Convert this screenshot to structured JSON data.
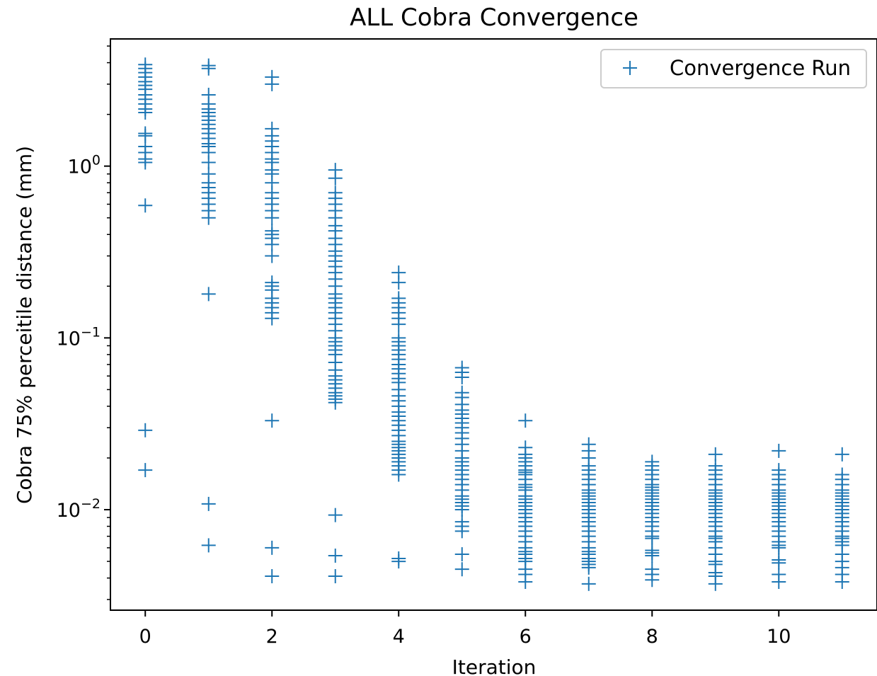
{
  "chart_data": {
    "type": "scatter",
    "title": "ALL Cobra Convergence",
    "xlabel": "Iteration",
    "ylabel": "Cobra 75% perceitile distance (mm)",
    "yscale": "log",
    "xlim": [
      -0.55,
      11.55
    ],
    "ylim": [
      0.0026,
      5.5
    ],
    "xticks": [
      0,
      2,
      4,
      6,
      8,
      10
    ],
    "yticks": [
      {
        "value": 1.0,
        "base": "10",
        "exp": "0"
      },
      {
        "value": 0.1,
        "base": "10",
        "exp": "−1"
      },
      {
        "value": 0.01,
        "base": "10",
        "exp": "−2"
      }
    ],
    "marker": "+",
    "color": "#1f77b4",
    "legend": {
      "position": "upper right",
      "entries": [
        "Convergence Run"
      ]
    },
    "series": [
      {
        "name": "Convergence Run",
        "points_by_iteration": [
          {
            "x": 0,
            "y": [
              3.9,
              3.7,
              3.5,
              3.3,
              3.1,
              2.95,
              2.8,
              2.6,
              2.45,
              2.3,
              2.15,
              2.05,
              1.55,
              1.5,
              1.3,
              1.2,
              1.1,
              1.05,
              0.59,
              0.029,
              0.017
            ]
          },
          {
            "x": 1,
            "y": [
              3.85,
              3.7,
              2.6,
              2.3,
              2.15,
              2.05,
              1.95,
              1.85,
              1.75,
              1.65,
              1.55,
              1.45,
              1.35,
              1.3,
              1.2,
              1.05,
              0.9,
              0.8,
              0.75,
              0.7,
              0.65,
              0.6,
              0.55,
              0.5,
              0.18,
              0.0108,
              0.0062
            ]
          },
          {
            "x": 2,
            "y": [
              3.3,
              3.0,
              1.65,
              1.5,
              1.4,
              1.3,
              1.2,
              1.1,
              1.05,
              0.95,
              0.9,
              0.8,
              0.7,
              0.65,
              0.6,
              0.55,
              0.5,
              0.42,
              0.4,
              0.38,
              0.35,
              0.3,
              0.21,
              0.2,
              0.19,
              0.17,
              0.16,
              0.15,
              0.14,
              0.13,
              0.033,
              0.006,
              0.0041
            ]
          },
          {
            "x": 3,
            "y": [
              0.95,
              0.85,
              0.7,
              0.65,
              0.6,
              0.55,
              0.5,
              0.45,
              0.42,
              0.38,
              0.35,
              0.32,
              0.3,
              0.28,
              0.26,
              0.24,
              0.22,
              0.2,
              0.18,
              0.17,
              0.16,
              0.15,
              0.14,
              0.13,
              0.12,
              0.11,
              0.1,
              0.095,
              0.09,
              0.085,
              0.08,
              0.072,
              0.065,
              0.06,
              0.057,
              0.054,
              0.051,
              0.048,
              0.046,
              0.044,
              0.042,
              0.0093,
              0.0054,
              0.0041
            ]
          },
          {
            "x": 4,
            "y": [
              0.24,
              0.21,
              0.17,
              0.16,
              0.15,
              0.14,
              0.13,
              0.12,
              0.1,
              0.095,
              0.09,
              0.085,
              0.08,
              0.075,
              0.07,
              0.066,
              0.062,
              0.058,
              0.055,
              0.05,
              0.046,
              0.043,
              0.04,
              0.037,
              0.035,
              0.033,
              0.031,
              0.029,
              0.027,
              0.025,
              0.024,
              0.023,
              0.022,
              0.021,
              0.02,
              0.019,
              0.018,
              0.017,
              0.016,
              0.0052,
              0.005
            ]
          },
          {
            "x": 5,
            "y": [
              0.067,
              0.063,
              0.059,
              0.048,
              0.045,
              0.041,
              0.038,
              0.036,
              0.034,
              0.032,
              0.03,
              0.028,
              0.026,
              0.024,
              0.022,
              0.02,
              0.019,
              0.018,
              0.017,
              0.016,
              0.015,
              0.014,
              0.013,
              0.012,
              0.0115,
              0.011,
              0.0105,
              0.01,
              0.0085,
              0.008,
              0.0075,
              0.0055,
              0.0045
            ]
          },
          {
            "x": 6,
            "y": [
              0.033,
              0.023,
              0.021,
              0.02,
              0.019,
              0.018,
              0.017,
              0.0165,
              0.016,
              0.015,
              0.014,
              0.0135,
              0.013,
              0.012,
              0.0115,
              0.011,
              0.0105,
              0.01,
              0.0095,
              0.009,
              0.0085,
              0.008,
              0.0075,
              0.007,
              0.0065,
              0.006,
              0.0057,
              0.0055,
              0.0052,
              0.005,
              0.0045,
              0.0042,
              0.0038
            ]
          },
          {
            "x": 7,
            "y": [
              0.024,
              0.022,
              0.02,
              0.018,
              0.017,
              0.016,
              0.015,
              0.014,
              0.013,
              0.0125,
              0.012,
              0.0115,
              0.011,
              0.0105,
              0.01,
              0.0095,
              0.009,
              0.0085,
              0.008,
              0.0075,
              0.007,
              0.0065,
              0.006,
              0.0057,
              0.0055,
              0.0052,
              0.005,
              0.0048,
              0.0046,
              0.0037
            ]
          },
          {
            "x": 8,
            "y": [
              0.019,
              0.018,
              0.017,
              0.016,
              0.015,
              0.014,
              0.0135,
              0.013,
              0.0125,
              0.012,
              0.0115,
              0.011,
              0.0105,
              0.01,
              0.0095,
              0.009,
              0.0085,
              0.008,
              0.0075,
              0.007,
              0.0068,
              0.0058,
              0.0056,
              0.0054,
              0.0045,
              0.0042,
              0.0039
            ]
          },
          {
            "x": 9,
            "y": [
              0.021,
              0.018,
              0.017,
              0.016,
              0.015,
              0.014,
              0.013,
              0.0125,
              0.012,
              0.0115,
              0.011,
              0.0105,
              0.01,
              0.0095,
              0.009,
              0.0085,
              0.008,
              0.0075,
              0.007,
              0.0068,
              0.0065,
              0.006,
              0.0055,
              0.005,
              0.0048,
              0.0043,
              0.0041,
              0.0037
            ]
          },
          {
            "x": 10,
            "y": [
              0.022,
              0.017,
              0.016,
              0.015,
              0.014,
              0.013,
              0.0125,
              0.012,
              0.0115,
              0.011,
              0.0105,
              0.01,
              0.0095,
              0.009,
              0.0085,
              0.008,
              0.0075,
              0.007,
              0.0065,
              0.0062,
              0.006,
              0.0051,
              0.0049,
              0.0042,
              0.0038
            ]
          },
          {
            "x": 11,
            "y": [
              0.021,
              0.016,
              0.015,
              0.014,
              0.013,
              0.0125,
              0.012,
              0.0115,
              0.011,
              0.0105,
              0.01,
              0.0095,
              0.009,
              0.0085,
              0.008,
              0.0075,
              0.007,
              0.0068,
              0.0065,
              0.0062,
              0.0055,
              0.005,
              0.0046,
              0.0042,
              0.0038
            ]
          }
        ]
      }
    ]
  }
}
